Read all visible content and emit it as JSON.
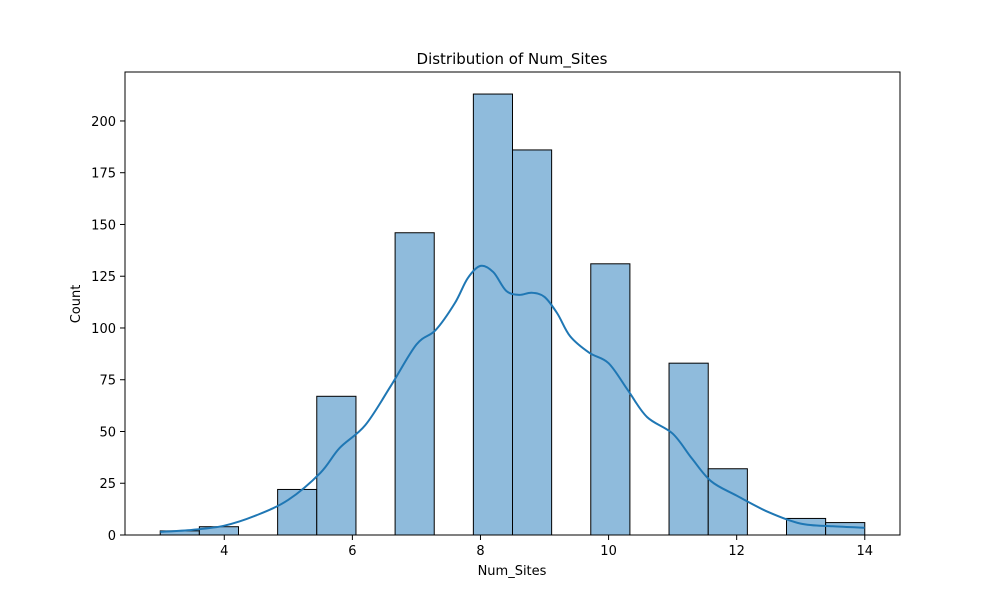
{
  "chart_data": {
    "type": "bar",
    "title": "Distribution of Num_Sites",
    "xlabel": "Num_Sites",
    "ylabel": "Count",
    "xlim": [
      2.45,
      14.55
    ],
    "ylim": [
      0,
      223.65
    ],
    "xticks": [
      4,
      6,
      8,
      10,
      12,
      14
    ],
    "yticks": [
      0,
      25,
      50,
      75,
      100,
      125,
      150,
      175,
      200
    ],
    "bin_width": 0.611,
    "bins": [
      {
        "x0": 3.0,
        "x1": 3.611,
        "count": 2
      },
      {
        "x0": 3.611,
        "x1": 4.222,
        "count": 4
      },
      {
        "x0": 4.222,
        "x1": 4.833,
        "count": 0
      },
      {
        "x0": 4.833,
        "x1": 5.444,
        "count": 22
      },
      {
        "x0": 5.444,
        "x1": 6.056,
        "count": 67
      },
      {
        "x0": 6.056,
        "x1": 6.667,
        "count": 0
      },
      {
        "x0": 6.667,
        "x1": 7.278,
        "count": 146
      },
      {
        "x0": 7.278,
        "x1": 7.889,
        "count": 0
      },
      {
        "x0": 7.889,
        "x1": 8.5,
        "count": 213
      },
      {
        "x0": 8.5,
        "x1": 9.111,
        "count": 186
      },
      {
        "x0": 9.111,
        "x1": 9.722,
        "count": 0
      },
      {
        "x0": 9.722,
        "x1": 10.333,
        "count": 131
      },
      {
        "x0": 10.333,
        "x1": 10.944,
        "count": 0
      },
      {
        "x0": 10.944,
        "x1": 11.556,
        "count": 83
      },
      {
        "x0": 11.556,
        "x1": 12.167,
        "count": 32
      },
      {
        "x0": 12.167,
        "x1": 12.778,
        "count": 0
      },
      {
        "x0": 12.778,
        "x1": 13.389,
        "count": 8
      },
      {
        "x0": 13.389,
        "x1": 14.0,
        "count": 6
      }
    ],
    "kde": {
      "x": [
        3.0,
        3.5,
        4.0,
        4.5,
        5.0,
        5.5,
        5.8,
        6.2,
        6.6,
        7.0,
        7.3,
        7.6,
        7.8,
        8.0,
        8.2,
        8.4,
        8.6,
        8.8,
        9.0,
        9.2,
        9.4,
        9.7,
        10.0,
        10.3,
        10.6,
        11.0,
        11.3,
        11.6,
        12.0,
        12.5,
        13.0,
        13.5,
        14.0
      ],
      "y": [
        1.5,
        2.5,
        4.5,
        9.5,
        17,
        30,
        42,
        53,
        72,
        92,
        99,
        112,
        124,
        130,
        127,
        118,
        116,
        117,
        115,
        107,
        96,
        88,
        83,
        70,
        57,
        49,
        37,
        26,
        19,
        11,
        5.5,
        4.2,
        3.5
      ]
    },
    "colors": {
      "bar_fill": "#8fbbdc",
      "bar_edge": "#000000",
      "kde_line": "#1f77b4"
    },
    "grid": false
  }
}
